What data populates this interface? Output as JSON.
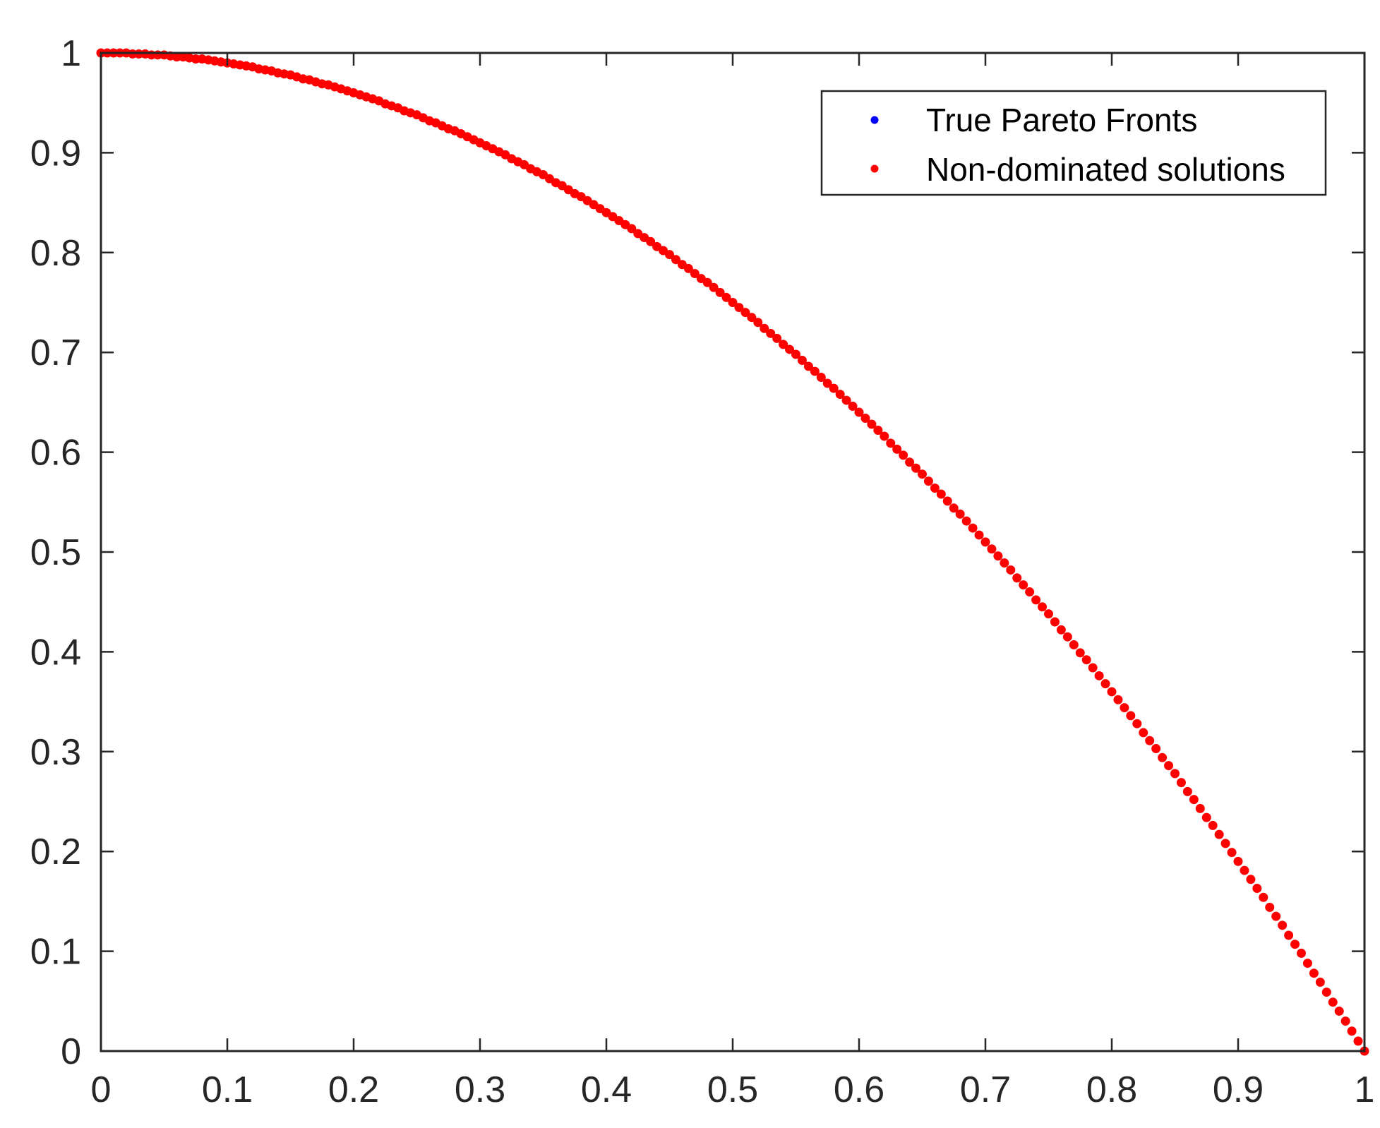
{
  "chart_data": {
    "type": "scatter",
    "title": "",
    "xlabel": "",
    "ylabel": "",
    "xlim": [
      0,
      1
    ],
    "ylim": [
      0,
      1
    ],
    "xticks": [
      0,
      0.1,
      0.2,
      0.3,
      0.4,
      0.5,
      0.6,
      0.7,
      0.8,
      0.9,
      1
    ],
    "yticks": [
      0,
      0.1,
      0.2,
      0.3,
      0.4,
      0.5,
      0.6,
      0.7,
      0.8,
      0.9,
      1
    ],
    "xtick_labels": [
      "0",
      "0.1",
      "0.2",
      "0.3",
      "0.4",
      "0.5",
      "0.6",
      "0.7",
      "0.8",
      "0.9",
      "1"
    ],
    "ytick_labels": [
      "0",
      "0.1",
      "0.2",
      "0.3",
      "0.4",
      "0.5",
      "0.6",
      "0.7",
      "0.8",
      "0.9",
      "1"
    ],
    "grid": false,
    "legend_position": "top-right",
    "series": [
      {
        "name": "True Pareto Fronts",
        "color": "#0000ff",
        "marker": "dot",
        "x": [
          0,
          0.02,
          0.04,
          0.06,
          0.08,
          0.1,
          0.12,
          0.14,
          0.16,
          0.18,
          0.2,
          0.22,
          0.24,
          0.26,
          0.28,
          0.3,
          0.32,
          0.34,
          0.36,
          0.38,
          0.4,
          0.42,
          0.44,
          0.46,
          0.48,
          0.5,
          0.52,
          0.54,
          0.56,
          0.58,
          0.6,
          0.62,
          0.64,
          0.66,
          0.68,
          0.7,
          0.72,
          0.74,
          0.76,
          0.78,
          0.8,
          0.82,
          0.84,
          0.86,
          0.88,
          0.9,
          0.92,
          0.94,
          0.96,
          0.98,
          1
        ],
        "y": [
          1,
          1,
          0.998,
          0.996,
          0.994,
          0.99,
          0.986,
          0.98,
          0.974,
          0.968,
          0.96,
          0.952,
          0.942,
          0.932,
          0.922,
          0.91,
          0.898,
          0.884,
          0.87,
          0.856,
          0.84,
          0.824,
          0.806,
          0.788,
          0.77,
          0.75,
          0.73,
          0.708,
          0.686,
          0.664,
          0.64,
          0.616,
          0.59,
          0.564,
          0.538,
          0.51,
          0.482,
          0.452,
          0.422,
          0.392,
          0.36,
          0.328,
          0.294,
          0.26,
          0.226,
          0.19,
          0.154,
          0.116,
          0.078,
          0.04,
          0
        ]
      },
      {
        "name": "Non-dominated solutions",
        "color": "#ff0000",
        "marker": "dot",
        "x": [
          0,
          0.005,
          0.01,
          0.015,
          0.02,
          0.025,
          0.03,
          0.035,
          0.04,
          0.045,
          0.05,
          0.055,
          0.06,
          0.065,
          0.07,
          0.075,
          0.08,
          0.085,
          0.09,
          0.095,
          0.1,
          0.105,
          0.11,
          0.115,
          0.12,
          0.125,
          0.13,
          0.135,
          0.14,
          0.145,
          0.15,
          0.155,
          0.16,
          0.165,
          0.17,
          0.175,
          0.18,
          0.185,
          0.19,
          0.195,
          0.2,
          0.205,
          0.21,
          0.215,
          0.22,
          0.225,
          0.23,
          0.235,
          0.24,
          0.245,
          0.25,
          0.255,
          0.26,
          0.265,
          0.27,
          0.275,
          0.28,
          0.285,
          0.29,
          0.295,
          0.3,
          0.305,
          0.31,
          0.315,
          0.32,
          0.325,
          0.33,
          0.335,
          0.34,
          0.345,
          0.35,
          0.355,
          0.36,
          0.365,
          0.37,
          0.375,
          0.38,
          0.385,
          0.39,
          0.395,
          0.4,
          0.405,
          0.41,
          0.415,
          0.42,
          0.425,
          0.43,
          0.435,
          0.44,
          0.445,
          0.45,
          0.455,
          0.46,
          0.465,
          0.47,
          0.475,
          0.48,
          0.485,
          0.49,
          0.495,
          0.5,
          0.505,
          0.51,
          0.515,
          0.52,
          0.525,
          0.53,
          0.535,
          0.54,
          0.545,
          0.55,
          0.555,
          0.56,
          0.565,
          0.57,
          0.575,
          0.58,
          0.585,
          0.59,
          0.595,
          0.6,
          0.605,
          0.61,
          0.615,
          0.62,
          0.625,
          0.63,
          0.635,
          0.64,
          0.645,
          0.65,
          0.655,
          0.66,
          0.665,
          0.67,
          0.675,
          0.68,
          0.685,
          0.69,
          0.695,
          0.7,
          0.705,
          0.71,
          0.715,
          0.72,
          0.725,
          0.73,
          0.735,
          0.74,
          0.745,
          0.75,
          0.755,
          0.76,
          0.765,
          0.77,
          0.775,
          0.78,
          0.785,
          0.79,
          0.795,
          0.8,
          0.805,
          0.81,
          0.815,
          0.82,
          0.825,
          0.83,
          0.835,
          0.84,
          0.845,
          0.85,
          0.855,
          0.86,
          0.865,
          0.87,
          0.875,
          0.88,
          0.885,
          0.89,
          0.895,
          0.9,
          0.905,
          0.91,
          0.915,
          0.92,
          0.925,
          0.93,
          0.935,
          0.94,
          0.945,
          0.95,
          0.955,
          0.96,
          0.965,
          0.97,
          0.975,
          0.98,
          0.985,
          0.99,
          0.995,
          1
        ],
        "y": [
          1,
          1,
          1,
          1,
          1,
          0.999,
          0.999,
          0.999,
          0.998,
          0.998,
          0.998,
          0.997,
          0.996,
          0.996,
          0.995,
          0.994,
          0.994,
          0.993,
          0.992,
          0.991,
          0.99,
          0.989,
          0.988,
          0.987,
          0.986,
          0.984,
          0.983,
          0.982,
          0.98,
          0.979,
          0.978,
          0.976,
          0.974,
          0.973,
          0.971,
          0.969,
          0.968,
          0.966,
          0.964,
          0.962,
          0.96,
          0.958,
          0.956,
          0.954,
          0.952,
          0.949,
          0.947,
          0.945,
          0.942,
          0.94,
          0.938,
          0.935,
          0.932,
          0.93,
          0.927,
          0.924,
          0.922,
          0.919,
          0.916,
          0.913,
          0.91,
          0.907,
          0.904,
          0.901,
          0.898,
          0.894,
          0.891,
          0.888,
          0.884,
          0.881,
          0.878,
          0.874,
          0.87,
          0.867,
          0.863,
          0.859,
          0.856,
          0.852,
          0.848,
          0.844,
          0.84,
          0.836,
          0.832,
          0.828,
          0.824,
          0.819,
          0.815,
          0.811,
          0.806,
          0.802,
          0.798,
          0.793,
          0.788,
          0.784,
          0.779,
          0.774,
          0.77,
          0.765,
          0.76,
          0.755,
          0.75,
          0.745,
          0.74,
          0.735,
          0.73,
          0.724,
          0.719,
          0.714,
          0.708,
          0.703,
          0.698,
          0.692,
          0.686,
          0.681,
          0.675,
          0.669,
          0.664,
          0.658,
          0.652,
          0.646,
          0.64,
          0.634,
          0.628,
          0.622,
          0.616,
          0.609,
          0.603,
          0.597,
          0.59,
          0.584,
          0.578,
          0.571,
          0.564,
          0.558,
          0.551,
          0.544,
          0.538,
          0.531,
          0.524,
          0.517,
          0.51,
          0.503,
          0.496,
          0.489,
          0.482,
          0.474,
          0.467,
          0.46,
          0.452,
          0.445,
          0.438,
          0.43,
          0.422,
          0.415,
          0.407,
          0.399,
          0.392,
          0.384,
          0.376,
          0.368,
          0.36,
          0.352,
          0.344,
          0.336,
          0.328,
          0.319,
          0.311,
          0.303,
          0.294,
          0.286,
          0.278,
          0.269,
          0.26,
          0.252,
          0.243,
          0.234,
          0.226,
          0.217,
          0.208,
          0.199,
          0.19,
          0.181,
          0.172,
          0.163,
          0.154,
          0.144,
          0.135,
          0.126,
          0.116,
          0.107,
          0.098,
          0.088,
          0.078,
          0.069,
          0.059,
          0.049,
          0.04,
          0.03,
          0.02,
          0.01,
          0
        ]
      }
    ]
  }
}
